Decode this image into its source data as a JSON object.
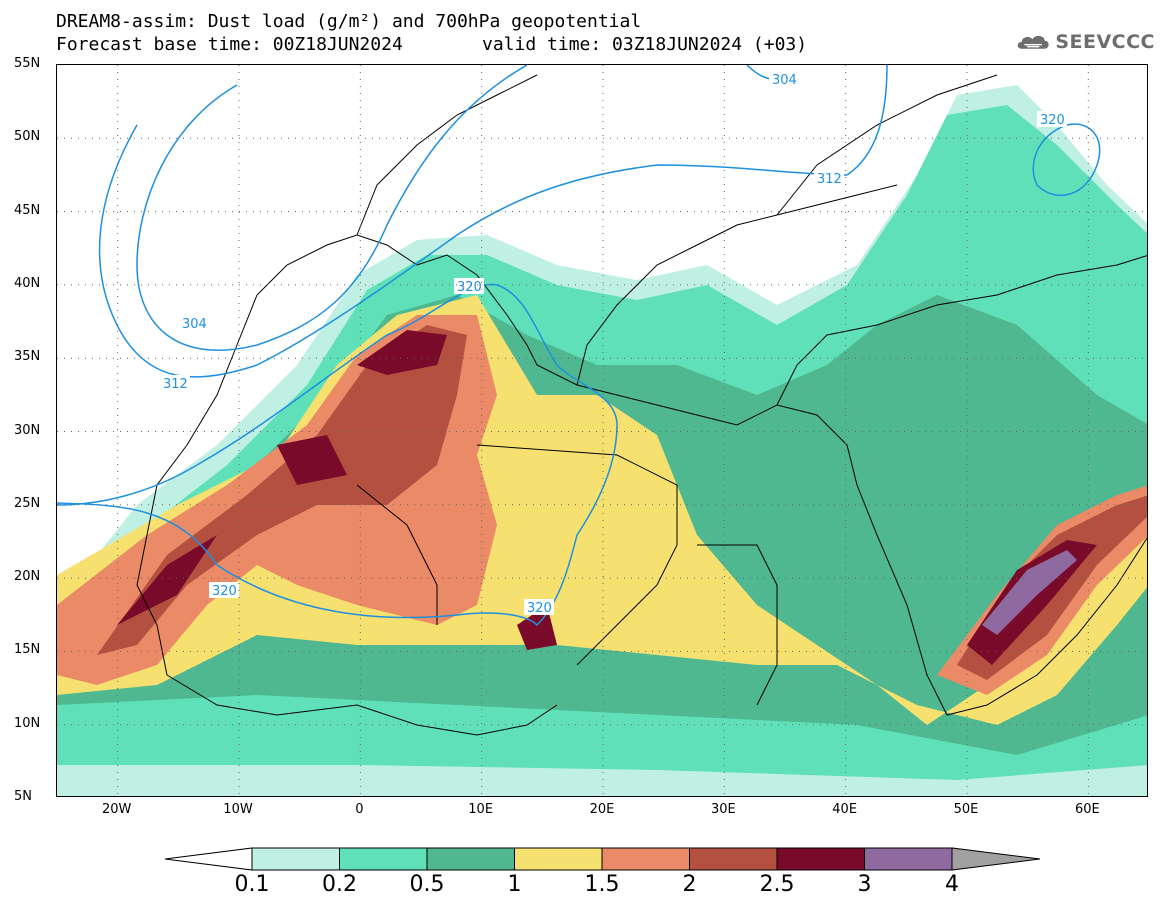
{
  "title": {
    "line1": "DREAM8-assim: Dust load (g/m²) and 700hPa geopotential",
    "line2": "Forecast base time: 00Z18JUN2024",
    "valid": "valid time: 03Z18JUN2024 (+03)"
  },
  "logo": {
    "text": "SEEVCCC",
    "icon": "cloud-icon"
  },
  "map": {
    "lon_range": [
      -25,
      65
    ],
    "lat_range": [
      5,
      55
    ],
    "lat_labels": [
      "55N",
      "50N",
      "45N",
      "40N",
      "35N",
      "30N",
      "25N",
      "20N",
      "15N",
      "10N",
      "5N"
    ],
    "lon_labels": [
      "20W",
      "10W",
      "0",
      "10E",
      "20E",
      "30E",
      "40E",
      "50E",
      "60E"
    ]
  },
  "contours": {
    "labels": [
      {
        "text": "304"
      },
      {
        "text": "304"
      },
      {
        "text": "312"
      },
      {
        "text": "312"
      },
      {
        "text": "320"
      },
      {
        "text": "320"
      },
      {
        "text": "320"
      },
      {
        "text": "320"
      }
    ]
  },
  "colorbar": {
    "ticks": [
      "0.1",
      "0.2",
      "0.5",
      "1",
      "1.5",
      "2",
      "2.5",
      "3",
      "4"
    ],
    "colors": [
      "#c0f0e4",
      "#5fe0b8",
      "#4fb890",
      "#f5e070",
      "#ea8a66",
      "#b45040",
      "#7a0a2a",
      "#8e6aa0"
    ],
    "under_color": "#ffffff",
    "over_color": "#a0a0a0"
  }
}
